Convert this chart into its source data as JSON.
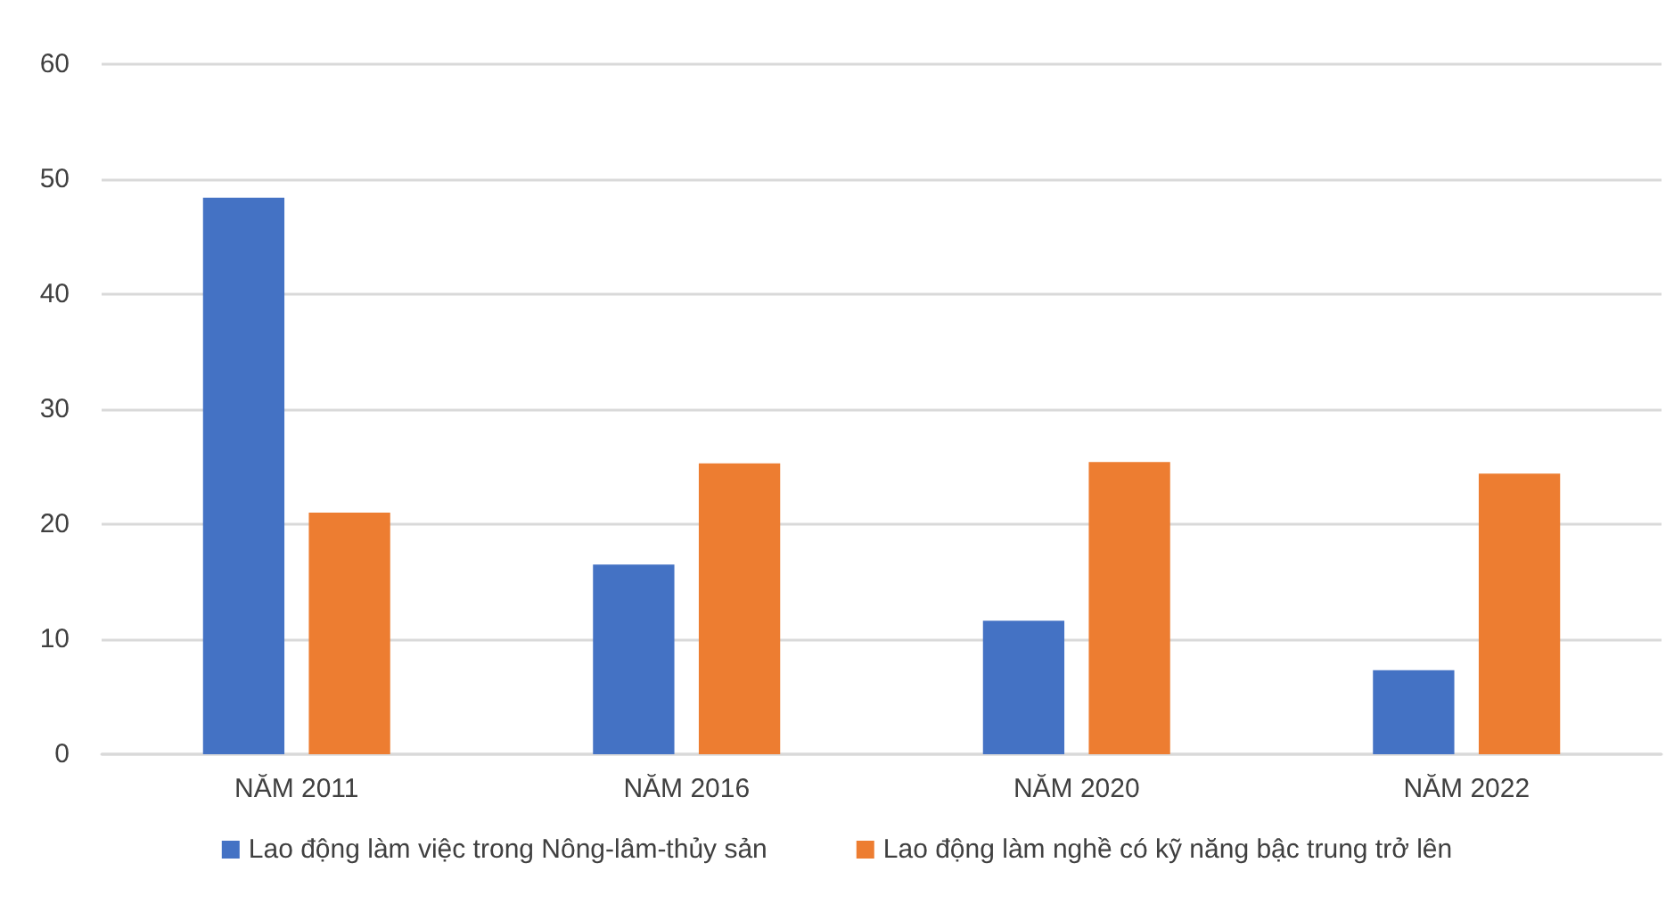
{
  "chart_data": {
    "type": "bar",
    "categories": [
      "NĂM 2011",
      "NĂM 2016",
      "NĂM 2020",
      "NĂM 2022"
    ],
    "series": [
      {
        "name": "Lao động làm việc trong Nông-lâm-thủy sản",
        "color": "#4472c4",
        "values": [
          48.4,
          16.5,
          11.6,
          7.3
        ]
      },
      {
        "name": "Lao động làm nghề có kỹ năng bậc trung trở lên",
        "color": "#ed7d31",
        "values": [
          21.0,
          25.3,
          25.4,
          24.4
        ]
      }
    ],
    "ylim": [
      0,
      60
    ],
    "yticks": [
      0,
      10,
      20,
      30,
      40,
      50,
      60
    ],
    "grid": "y",
    "legend": "bottom"
  }
}
